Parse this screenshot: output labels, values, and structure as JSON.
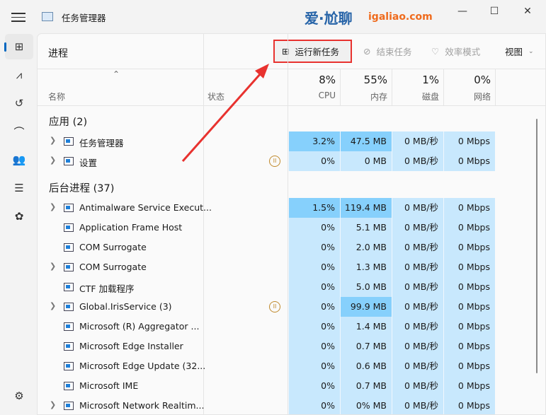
{
  "window": {
    "title": "任务管理器",
    "minimize": "—",
    "maximize": "☐",
    "close": "✕"
  },
  "nav": [
    {
      "icon": "processes-icon",
      "glyph": "⊞",
      "active": true
    },
    {
      "icon": "performance-icon",
      "glyph": "⩘"
    },
    {
      "icon": "app-history-icon",
      "glyph": "↺"
    },
    {
      "icon": "startup-apps-icon",
      "glyph": "⌒"
    },
    {
      "icon": "users-icon",
      "glyph": "👥"
    },
    {
      "icon": "details-icon",
      "glyph": "☰"
    },
    {
      "icon": "services-icon",
      "glyph": "✿"
    },
    {
      "icon": "settings-icon",
      "glyph": "⚙"
    }
  ],
  "toolbar": {
    "title": "进程",
    "run_new_task": "运行新任务",
    "end_task": "结束任务",
    "efficiency_mode": "效率模式",
    "view": "视图"
  },
  "columns": {
    "name": "名称",
    "status": "状态",
    "cpu": {
      "pct": "8%",
      "label": "CPU"
    },
    "memory": {
      "pct": "55%",
      "label": "内存"
    },
    "disk": {
      "pct": "1%",
      "label": "磁盘"
    },
    "network": {
      "pct": "0%",
      "label": "网络"
    }
  },
  "groups": [
    {
      "label": "应用 (2)",
      "rows": [
        {
          "name": "任务管理器",
          "expand": true,
          "icon": "task-manager-icon",
          "cpu": "3.2%",
          "mem": "47.5 MB",
          "disk": "0 MB/秒",
          "net": "0 Mbps",
          "hi": [
            "cpu",
            "mem"
          ]
        },
        {
          "name": "设置",
          "expand": true,
          "icon": "settings-gear-icon",
          "paused": true,
          "cpu": "0%",
          "mem": "0 MB",
          "disk": "0 MB/秒",
          "net": "0 Mbps",
          "hi": []
        }
      ]
    },
    {
      "label": "后台进程 (37)",
      "rows": [
        {
          "name": "Antimalware Service Execut...",
          "expand": true,
          "cpu": "1.5%",
          "mem": "119.4 MB",
          "disk": "0 MB/秒",
          "net": "0 Mbps",
          "hi": [
            "cpu",
            "mem"
          ]
        },
        {
          "name": "Application Frame Host",
          "cpu": "0%",
          "mem": "5.1 MB",
          "disk": "0 MB/秒",
          "net": "0 Mbps",
          "hi": []
        },
        {
          "name": "COM Surrogate",
          "cpu": "0%",
          "mem": "2.0 MB",
          "disk": "0 MB/秒",
          "net": "0 Mbps",
          "hi": []
        },
        {
          "name": "COM Surrogate",
          "expand": true,
          "cpu": "0%",
          "mem": "1.3 MB",
          "disk": "0 MB/秒",
          "net": "0 Mbps",
          "hi": []
        },
        {
          "name": "CTF 加载程序",
          "cpu": "0%",
          "mem": "5.0 MB",
          "disk": "0 MB/秒",
          "net": "0 Mbps",
          "hi": []
        },
        {
          "name": "Global.IrisService (3)",
          "expand": true,
          "paused": true,
          "cpu": "0%",
          "mem": "99.9 MB",
          "disk": "0 MB/秒",
          "net": "0 Mbps",
          "hi": [
            "mem"
          ]
        },
        {
          "name": "Microsoft (R) Aggregator ...",
          "cpu": "0%",
          "mem": "1.4 MB",
          "disk": "0 MB/秒",
          "net": "0 Mbps",
          "hi": []
        },
        {
          "name": "Microsoft Edge Installer",
          "cpu": "0%",
          "mem": "0.7 MB",
          "disk": "0 MB/秒",
          "net": "0 Mbps",
          "hi": []
        },
        {
          "name": "Microsoft Edge Update (32...",
          "cpu": "0%",
          "mem": "0.6 MB",
          "disk": "0 MB/秒",
          "net": "0 Mbps",
          "hi": []
        },
        {
          "name": "Microsoft IME",
          "cpu": "0%",
          "mem": "0.7 MB",
          "disk": "0 MB/秒",
          "net": "0 Mbps",
          "hi": []
        },
        {
          "name": "Microsoft Network Realtim...",
          "expand": true,
          "cpu": "0%",
          "mem": "0% MB",
          "disk": "0 MB/秒",
          "net": "0 Mbps",
          "hi": []
        }
      ]
    }
  ],
  "watermark": {
    "brand": "爱·尬聊",
    "url": "igaliao.com"
  },
  "colors": {
    "cell": "#c8e8fd",
    "cell_highlight": "#86d0fc",
    "annotation": "#e8322f",
    "accent": "#0067c0"
  }
}
